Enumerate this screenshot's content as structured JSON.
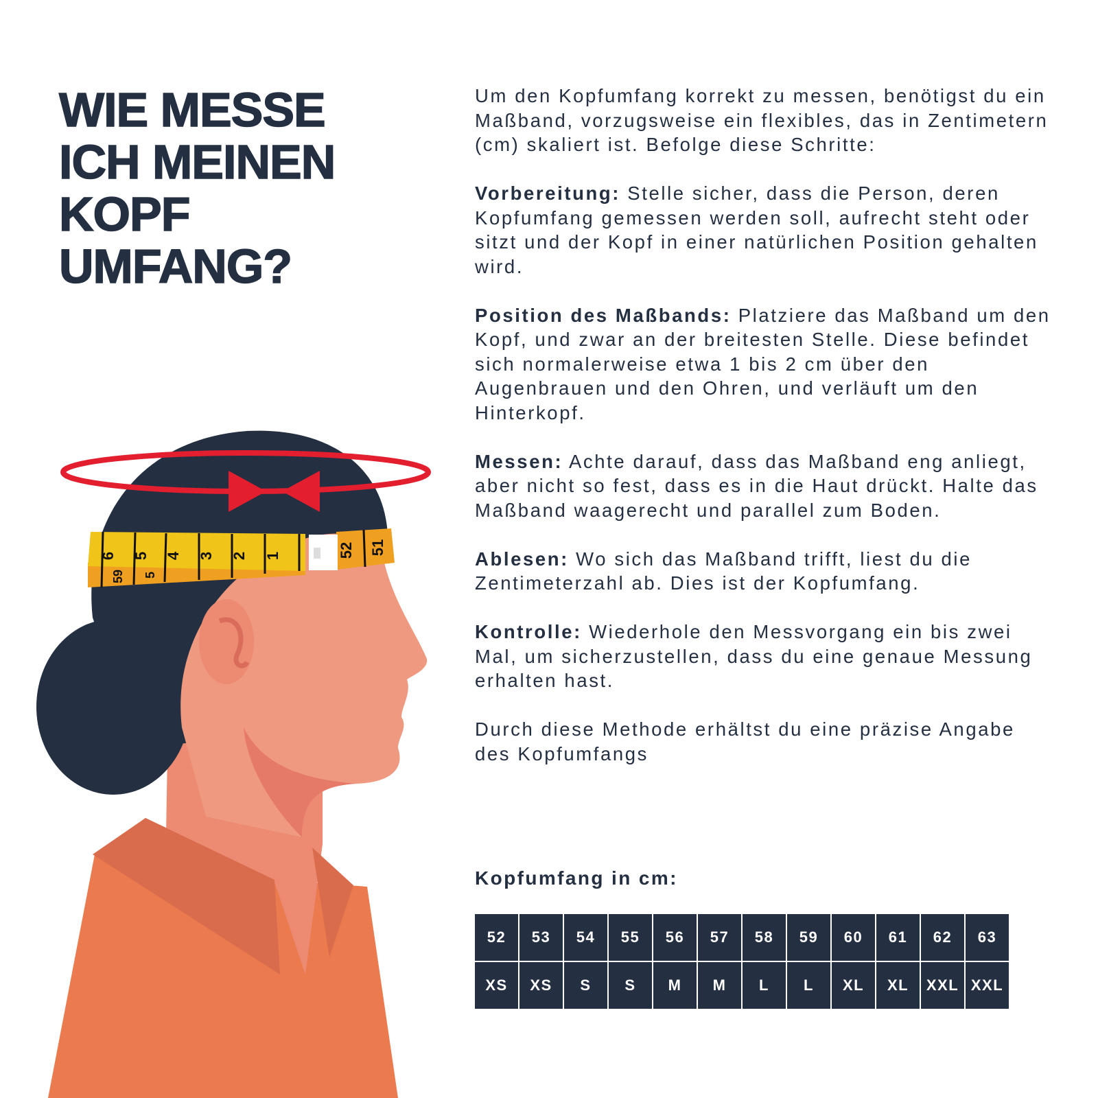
{
  "title": "WIE MESSE\nICH MEINEN\nKOPF\nUMFANG?",
  "intro": "Um den Kopfumfang korrekt zu messen, benötigst du ein Maßband, vorzugsweise ein flexibles, das in Zentimetern (cm) skaliert ist. Befolge diese Schritte:",
  "steps": [
    {
      "label": "Vorbereitung:",
      "text": " Stelle sicher, dass die Person, deren Kopfumfang gemessen werden soll, aufrecht steht oder sitzt und der Kopf in einer natürlichen Position gehalten wird."
    },
    {
      "label": "Position des Maßbands:",
      "text": " Platziere das Maßband um den Kopf, und zwar an der breitesten Stelle. Diese befindet sich normalerweise etwa 1 bis 2 cm über den Augenbrauen und den Ohren, und verläuft um den Hinterkopf."
    },
    {
      "label": "Messen:",
      "text": " Achte darauf, dass das Maßband eng anliegt, aber nicht so fest, dass es in die Haut drückt. Halte das Maßband waagerecht und parallel zum Boden."
    },
    {
      "label": "Ablesen:",
      "text": " Wo sich das Maßband trifft, liest du die Zentimeterzahl ab. Dies ist der Kopfumfang."
    },
    {
      "label": "Kontrolle:",
      "text": " Wiederhole den Messvorgang ein bis zwei Mal, um sicherzustellen, dass du eine genaue Messung erhalten hast."
    }
  ],
  "closing": "Durch diese Methode erhältst du eine präzise Angabe des Kopfumfangs",
  "size_table": {
    "heading": "Kopfumfang in cm:",
    "cm": [
      "52",
      "53",
      "54",
      "55",
      "56",
      "57",
      "58",
      "59",
      "60",
      "61",
      "62",
      "63"
    ],
    "sizes": [
      "XS",
      "XS",
      "S",
      "S",
      "M",
      "M",
      "L",
      "L",
      "XL",
      "XL",
      "XXL",
      "XXL"
    ]
  },
  "tape_marks": {
    "front": [
      "6",
      "5",
      "4",
      "3",
      "2",
      "1"
    ],
    "end": [
      "52",
      "51"
    ],
    "back": [
      "59",
      "5"
    ]
  },
  "colors": {
    "navy": "#252f42",
    "red": "#e31e2f",
    "tape_yellow": "#f0c419",
    "tape_orange": "#f0a020",
    "skin": "#ef9a80",
    "shirt": "#ec7a4f"
  }
}
